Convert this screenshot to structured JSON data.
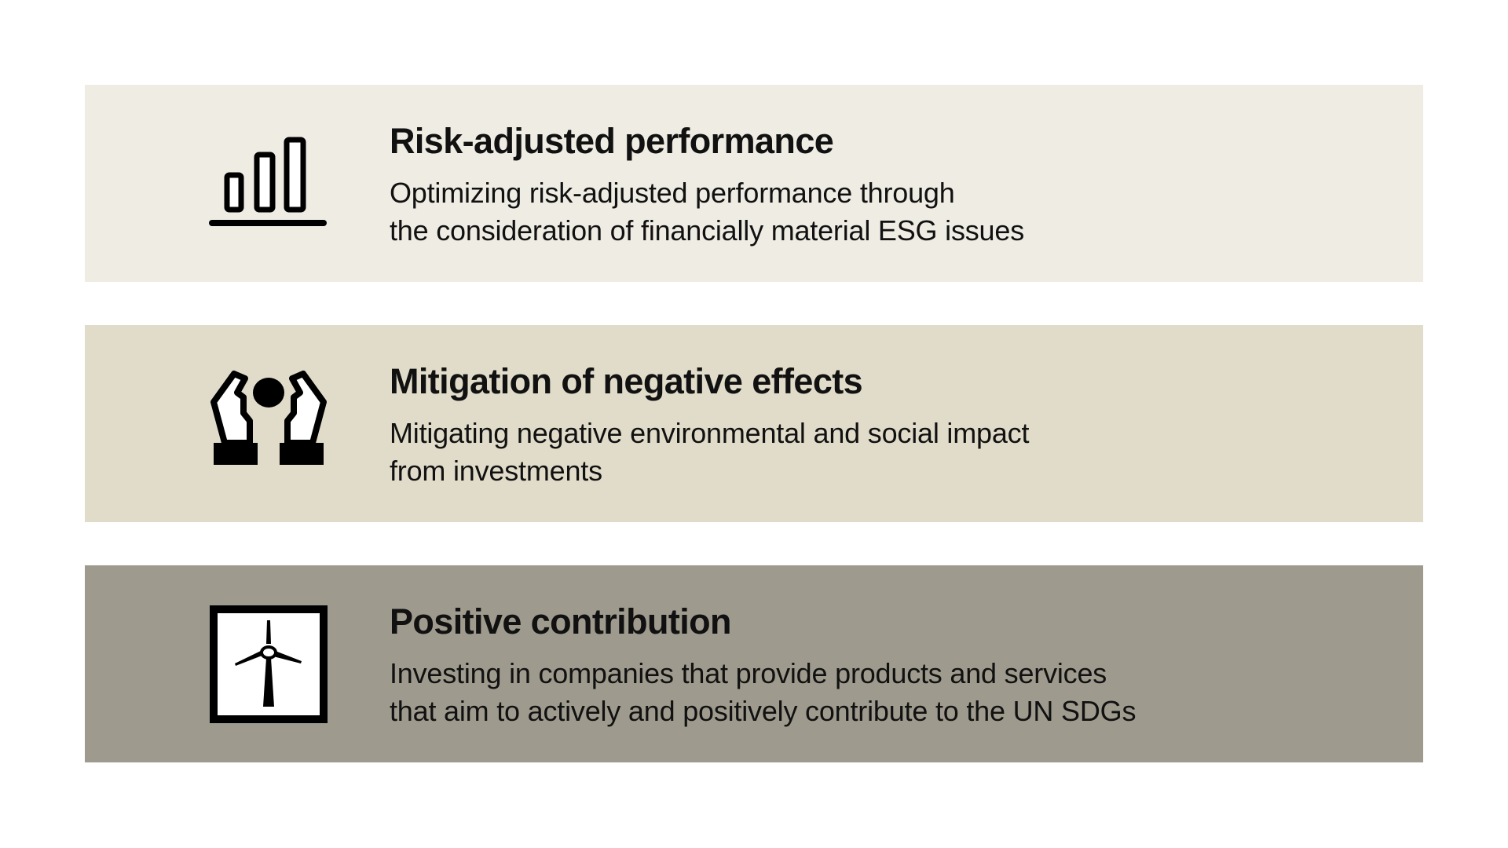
{
  "panels": [
    {
      "icon": "bar-chart-icon",
      "color": "#efece4",
      "title": "Risk-adjusted performance",
      "lines": [
        "Optimizing risk-adjusted performance through",
        "the consideration of financially material ESG issues"
      ]
    },
    {
      "icon": "hands-protecting-icon",
      "color": "#e1dcca",
      "title": "Mitigation of negative effects",
      "lines": [
        "Mitigating negative environmental and social impact",
        "from investments"
      ]
    },
    {
      "icon": "wind-turbine-icon",
      "color": "#9e9a8d",
      "title": "Positive contribution",
      "lines": [
        "Investing in companies that provide products and services",
        "that aim to actively and positively contribute to the UN SDGs"
      ]
    }
  ]
}
